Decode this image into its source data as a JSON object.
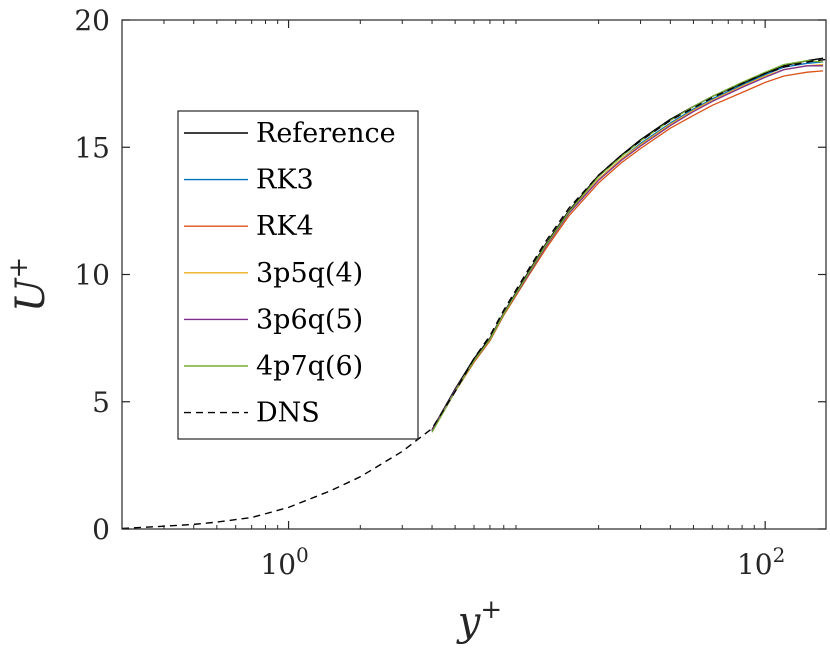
{
  "chart_data": {
    "type": "line",
    "xscale": "log",
    "xlim": [
      0.2,
      180
    ],
    "ylim": [
      0,
      20
    ],
    "xlabel": "y",
    "xlabel_sup": "+",
    "ylabel": "U",
    "ylabel_sup": "+",
    "yticks": [
      0,
      5,
      10,
      15,
      20
    ],
    "ytick_labels": [
      "0",
      "5",
      "10",
      "15",
      "20"
    ],
    "xticks": [
      1,
      100
    ],
    "xtick_labels": [
      {
        "base": "10",
        "exp": "0"
      },
      {
        "base": "10",
        "exp": "2"
      }
    ],
    "legend_position": "left, mid-height",
    "series": [
      {
        "name": "Reference",
        "color": "#000000",
        "dash": "solid",
        "x": [
          4,
          5,
          6,
          7,
          8,
          10,
          12,
          15,
          20,
          25,
          30,
          40,
          50,
          60,
          80,
          100,
          120,
          150,
          175
        ],
        "y": [
          3.9,
          5.5,
          6.7,
          7.5,
          8.5,
          10.0,
          11.2,
          12.5,
          13.9,
          14.7,
          15.3,
          16.1,
          16.6,
          17.0,
          17.5,
          17.9,
          18.2,
          18.4,
          18.5
        ]
      },
      {
        "name": "RK3",
        "color": "#0072BD",
        "dash": "solid",
        "x": [
          4,
          5,
          6,
          7,
          8,
          10,
          12,
          15,
          20,
          25,
          30,
          40,
          50,
          60,
          80,
          100,
          120,
          150,
          175
        ],
        "y": [
          3.85,
          5.45,
          6.6,
          7.45,
          8.45,
          9.9,
          11.1,
          12.4,
          13.75,
          14.55,
          15.15,
          15.95,
          16.5,
          16.9,
          17.45,
          17.85,
          18.15,
          18.3,
          18.35
        ]
      },
      {
        "name": "RK4",
        "color": "#D95319",
        "dash": "solid",
        "x": [
          4,
          5,
          6,
          7,
          8,
          10,
          12,
          15,
          20,
          25,
          30,
          40,
          50,
          60,
          80,
          100,
          120,
          150,
          175
        ],
        "y": [
          3.85,
          5.4,
          6.55,
          7.4,
          8.4,
          9.85,
          11.0,
          12.3,
          13.6,
          14.4,
          14.95,
          15.75,
          16.25,
          16.65,
          17.15,
          17.55,
          17.8,
          17.95,
          18.0
        ]
      },
      {
        "name": "3p5q(4)",
        "color": "#EDB120",
        "dash": "solid",
        "x": [
          4,
          5,
          6,
          7,
          8,
          10,
          12,
          15,
          20,
          25,
          30,
          40,
          50,
          60,
          80,
          100,
          120,
          150,
          175
        ],
        "y": [
          3.85,
          5.45,
          6.6,
          7.45,
          8.45,
          9.9,
          11.1,
          12.4,
          13.75,
          14.55,
          15.1,
          15.9,
          16.45,
          16.85,
          17.4,
          17.8,
          18.05,
          18.2,
          18.25
        ]
      },
      {
        "name": "3p6q(5)",
        "color": "#7E2F8E",
        "dash": "solid",
        "x": [
          4,
          5,
          6,
          7,
          8,
          10,
          12,
          15,
          20,
          25,
          30,
          40,
          50,
          60,
          80,
          100,
          120,
          150,
          175
        ],
        "y": [
          3.85,
          5.45,
          6.6,
          7.45,
          8.45,
          9.9,
          11.1,
          12.4,
          13.7,
          14.5,
          15.05,
          15.85,
          16.4,
          16.8,
          17.35,
          17.75,
          18.05,
          18.2,
          18.2
        ]
      },
      {
        "name": "4p7q(6)",
        "color": "#77AC30",
        "dash": "solid",
        "x": [
          4,
          5,
          6,
          7,
          8,
          10,
          12,
          15,
          20,
          25,
          30,
          40,
          50,
          60,
          80,
          100,
          120,
          150,
          175
        ],
        "y": [
          3.8,
          5.4,
          6.6,
          7.45,
          8.45,
          9.95,
          11.15,
          12.45,
          13.85,
          14.65,
          15.25,
          16.05,
          16.6,
          17.0,
          17.55,
          17.95,
          18.25,
          18.4,
          18.35
        ]
      },
      {
        "name": "DNS",
        "color": "#000000",
        "dash": "dashed",
        "x": [
          0.2,
          0.3,
          0.4,
          0.5,
          0.7,
          1.0,
          1.5,
          2.0,
          2.5,
          3.0,
          4.0,
          5.0,
          6.0,
          7.0,
          8.0,
          10,
          12,
          15,
          20,
          25,
          30,
          40,
          50,
          60,
          80,
          100,
          120,
          150,
          180
        ],
        "y": [
          0.02,
          0.11,
          0.18,
          0.27,
          0.45,
          0.85,
          1.5,
          2.05,
          2.6,
          3.05,
          3.95,
          5.4,
          6.7,
          7.6,
          8.6,
          10.1,
          11.3,
          12.6,
          13.9,
          14.7,
          15.25,
          16.05,
          16.55,
          16.95,
          17.5,
          17.9,
          18.15,
          18.35,
          18.45
        ]
      }
    ]
  }
}
